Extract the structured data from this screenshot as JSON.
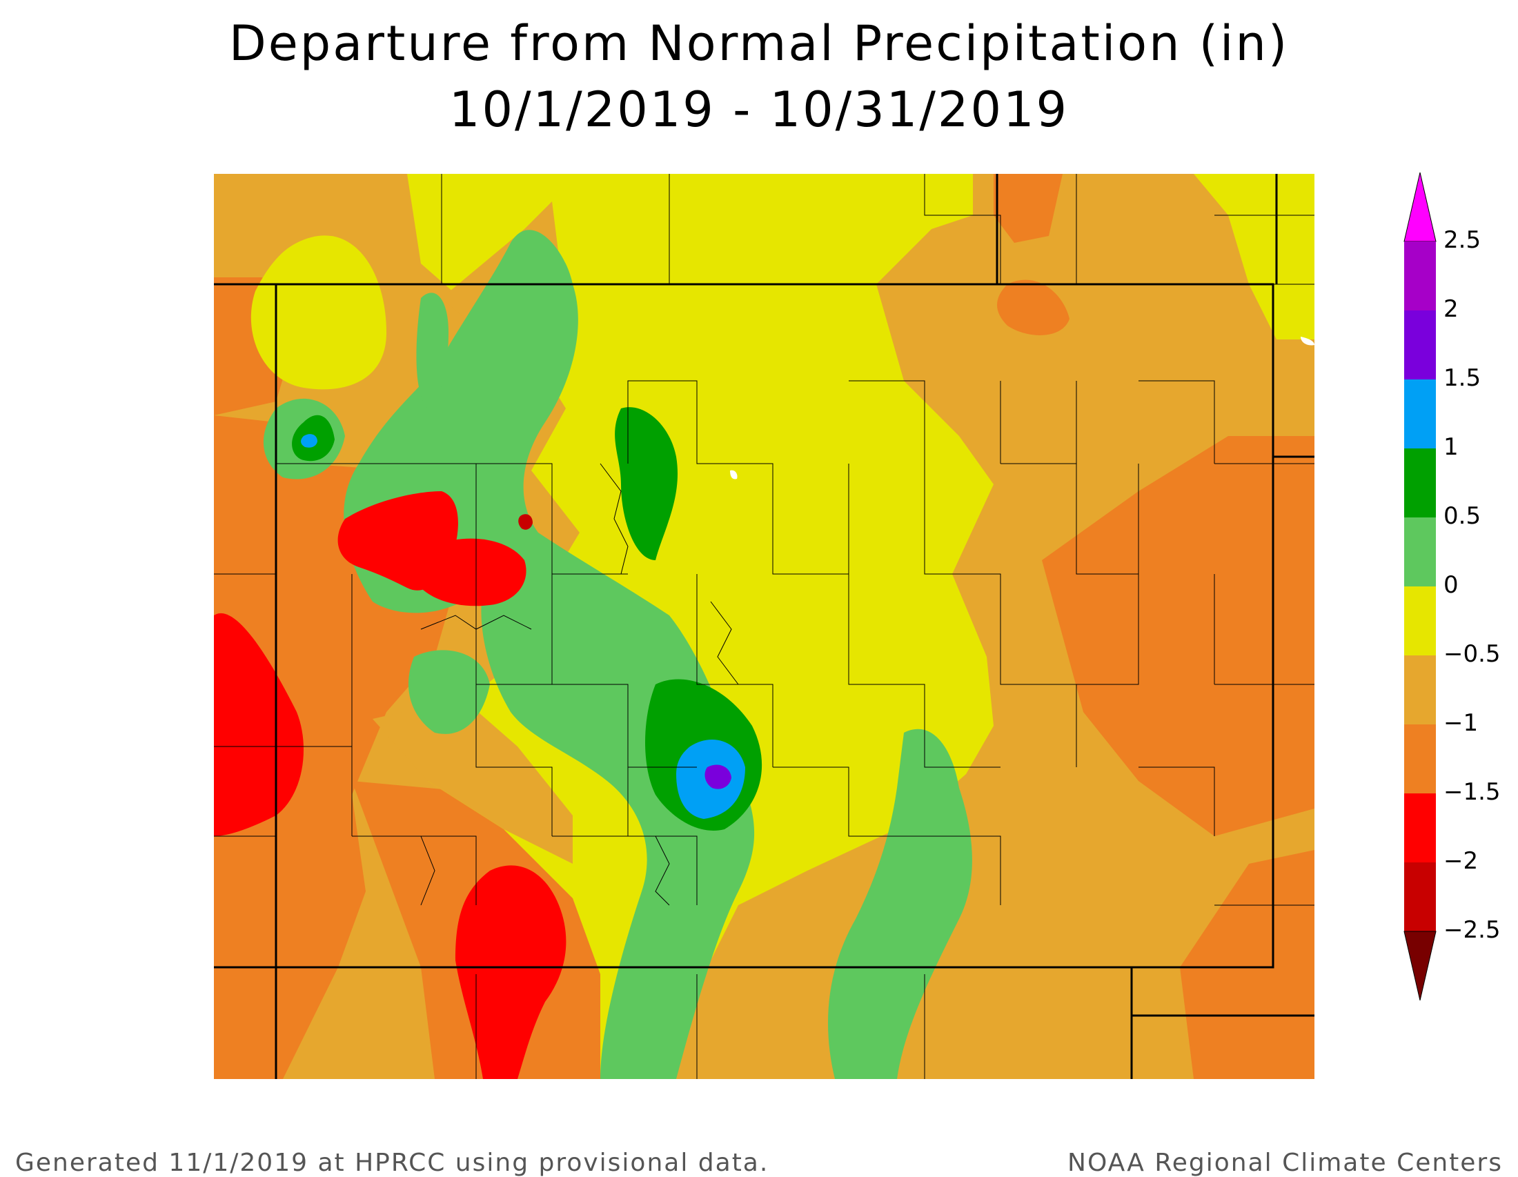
{
  "title": {
    "line1": "Departure from Normal Precipitation (in)",
    "line2": "10/1/2019 - 10/31/2019"
  },
  "map": {
    "region": "Colorado",
    "variable": "precipitation departure from normal",
    "units": "in",
    "background_color": "#e6a72e"
  },
  "legend": {
    "labels": [
      "2.5",
      "2",
      "1.5",
      "1",
      "0.5",
      "0",
      "−0.5",
      "−1",
      "−1.5",
      "−2",
      "−2.5"
    ],
    "bins": [
      {
        "range": "> 2.5",
        "color": "#ff00ff"
      },
      {
        "range": "2 to 2.5",
        "color": "#a600c8"
      },
      {
        "range": "1.5 to 2",
        "color": "#7a00dc"
      },
      {
        "range": "1 to 1.5",
        "color": "#00a0f5"
      },
      {
        "range": "0.5 to 1",
        "color": "#00a000"
      },
      {
        "range": "0 to 0.5",
        "color": "#5ec85e"
      },
      {
        "range": "-0.5 to 0",
        "color": "#e6e600"
      },
      {
        "range": "-1 to -0.5",
        "color": "#e6a72e"
      },
      {
        "range": "-1.5 to -1",
        "color": "#ee8022"
      },
      {
        "range": "-2 to -1.5",
        "color": "#ff0000"
      },
      {
        "range": "-2.5 to -2",
        "color": "#c80000"
      },
      {
        "range": "< -2.5",
        "color": "#780000"
      }
    ]
  },
  "footer": {
    "left": "Generated 11/1/2019 at HPRCC using provisional data.",
    "right": "NOAA Regional Climate Centers"
  }
}
